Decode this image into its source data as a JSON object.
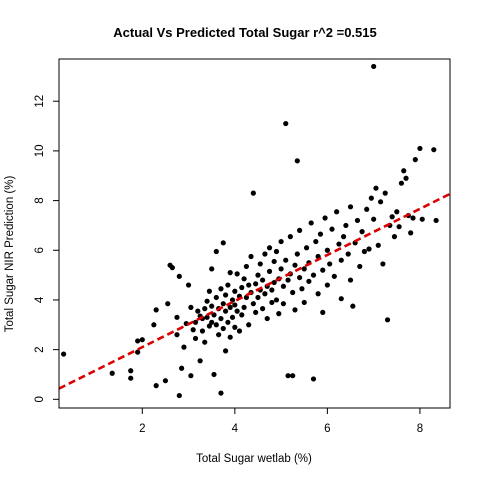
{
  "chart_data": {
    "type": "scatter",
    "title": "Actual Vs Predicted Total Sugar r^2 =0.515",
    "xlabel": "Total Sugar wetlab (%)",
    "ylabel": "Total Sugar NIR Prediction (%)",
    "xlim": [
      0.2,
      8.65
    ],
    "ylim": [
      -0.35,
      13.7
    ],
    "x_ticks": [
      2,
      4,
      6,
      8
    ],
    "y_ticks": [
      0,
      2,
      4,
      6,
      8,
      10,
      12
    ],
    "grid": false,
    "legend": "none",
    "colors": {
      "points": "#000000",
      "fit_line": "#dd0000"
    },
    "fit_line": {
      "style": "dashed",
      "x": [
        0.2,
        8.65
      ],
      "y": [
        0.43,
        8.27
      ]
    },
    "points": [
      [
        0.3,
        1.82
      ],
      [
        1.35,
        1.05
      ],
      [
        1.75,
        1.15
      ],
      [
        1.75,
        0.85
      ],
      [
        1.9,
        1.9
      ],
      [
        1.9,
        2.35
      ],
      [
        2.0,
        2.4
      ],
      [
        2.25,
        3.0
      ],
      [
        2.3,
        0.55
      ],
      [
        2.3,
        3.6
      ],
      [
        2.5,
        0.75
      ],
      [
        2.55,
        3.85
      ],
      [
        2.6,
        5.4
      ],
      [
        2.65,
        5.3
      ],
      [
        2.75,
        2.6
      ],
      [
        2.75,
        3.3
      ],
      [
        2.8,
        0.15
      ],
      [
        2.8,
        4.95
      ],
      [
        2.85,
        1.25
      ],
      [
        2.9,
        2.1
      ],
      [
        2.95,
        3.05
      ],
      [
        3.0,
        4.6
      ],
      [
        3.05,
        3.7
      ],
      [
        3.05,
        0.95
      ],
      [
        3.1,
        2.8
      ],
      [
        3.15,
        3.1
      ],
      [
        3.15,
        2.45
      ],
      [
        3.2,
        3.55
      ],
      [
        3.25,
        1.55
      ],
      [
        3.25,
        3.35
      ],
      [
        3.3,
        3.25
      ],
      [
        3.3,
        2.75
      ],
      [
        3.35,
        3.65
      ],
      [
        3.35,
        2.3
      ],
      [
        3.4,
        3.3
      ],
      [
        3.4,
        3.95
      ],
      [
        3.45,
        2.95
      ],
      [
        3.45,
        4.35
      ],
      [
        3.5,
        3.1
      ],
      [
        3.5,
        3.75
      ],
      [
        3.5,
        5.25
      ],
      [
        3.55,
        3.4
      ],
      [
        3.55,
        1.0
      ],
      [
        3.6,
        4.1
      ],
      [
        3.6,
        3.0
      ],
      [
        3.6,
        5.95
      ],
      [
        3.65,
        3.65
      ],
      [
        3.65,
        2.6
      ],
      [
        3.7,
        0.25
      ],
      [
        3.7,
        4.45
      ],
      [
        3.7,
        3.25
      ],
      [
        3.75,
        3.85
      ],
      [
        3.75,
        2.85
      ],
      [
        3.75,
        6.3
      ],
      [
        3.8,
        3.55
      ],
      [
        3.8,
        4.2
      ],
      [
        3.8,
        1.95
      ],
      [
        3.85,
        3.1
      ],
      [
        3.85,
        4.6
      ],
      [
        3.9,
        3.7
      ],
      [
        3.9,
        2.5
      ],
      [
        3.9,
        5.1
      ],
      [
        3.95,
        4.0
      ],
      [
        3.95,
        3.3
      ],
      [
        4.0,
        4.35
      ],
      [
        4.0,
        2.9
      ],
      [
        4.0,
        3.8
      ],
      [
        4.05,
        5.05
      ],
      [
        4.05,
        3.55
      ],
      [
        4.1,
        4.15
      ],
      [
        4.1,
        2.75
      ],
      [
        4.15,
        4.5
      ],
      [
        4.15,
        3.4
      ],
      [
        4.2,
        4.85
      ],
      [
        4.2,
        3.7
      ],
      [
        4.25,
        5.35
      ],
      [
        4.25,
        4.1
      ],
      [
        4.3,
        3.0
      ],
      [
        4.3,
        4.6
      ],
      [
        4.35,
        4.3
      ],
      [
        4.35,
        5.75
      ],
      [
        4.4,
        3.85
      ],
      [
        4.4,
        8.3
      ],
      [
        4.45,
        4.65
      ],
      [
        4.45,
        3.5
      ],
      [
        4.5,
        5.0
      ],
      [
        4.5,
        4.1
      ],
      [
        4.55,
        4.4
      ],
      [
        4.55,
        5.45
      ],
      [
        4.6,
        3.65
      ],
      [
        4.6,
        4.8
      ],
      [
        4.65,
        5.85
      ],
      [
        4.65,
        4.25
      ],
      [
        4.7,
        4.55
      ],
      [
        4.7,
        3.25
      ],
      [
        4.75,
        5.15
      ],
      [
        4.75,
        6.1
      ],
      [
        4.8,
        4.4
      ],
      [
        4.8,
        3.9
      ],
      [
        4.85,
        5.55
      ],
      [
        4.85,
        4.7
      ],
      [
        4.9,
        5.95
      ],
      [
        4.9,
        4.0
      ],
      [
        4.95,
        4.85
      ],
      [
        4.95,
        3.45
      ],
      [
        5.0,
        5.25
      ],
      [
        5.0,
        6.35
      ],
      [
        5.05,
        4.55
      ],
      [
        5.05,
        3.85
      ],
      [
        5.1,
        5.6
      ],
      [
        5.1,
        11.1
      ],
      [
        5.15,
        4.8
      ],
      [
        5.15,
        0.95
      ],
      [
        5.2,
        5.05
      ],
      [
        5.2,
        6.55
      ],
      [
        5.25,
        0.95
      ],
      [
        5.25,
        4.3
      ],
      [
        5.3,
        5.4
      ],
      [
        5.3,
        3.6
      ],
      [
        5.35,
        9.6
      ],
      [
        5.35,
        5.85
      ],
      [
        5.4,
        4.9
      ],
      [
        5.4,
        6.8
      ],
      [
        5.45,
        4.45
      ],
      [
        5.5,
        5.25
      ],
      [
        5.5,
        3.9
      ],
      [
        5.55,
        6.1
      ],
      [
        5.6,
        5.5
      ],
      [
        5.6,
        4.75
      ],
      [
        5.65,
        7.1
      ],
      [
        5.7,
        5.0
      ],
      [
        5.7,
        0.82
      ],
      [
        5.75,
        6.35
      ],
      [
        5.8,
        4.25
      ],
      [
        5.8,
        5.75
      ],
      [
        5.85,
        6.65
      ],
      [
        5.9,
        5.2
      ],
      [
        5.9,
        3.5
      ],
      [
        5.95,
        7.3
      ],
      [
        6.0,
        6.0
      ],
      [
        6.0,
        4.6
      ],
      [
        6.05,
        5.45
      ],
      [
        6.1,
        6.85
      ],
      [
        6.15,
        4.95
      ],
      [
        6.2,
        7.55
      ],
      [
        6.25,
        6.25
      ],
      [
        6.3,
        5.6
      ],
      [
        6.3,
        4.05
      ],
      [
        6.35,
        6.55
      ],
      [
        6.4,
        7.0
      ],
      [
        6.45,
        5.85
      ],
      [
        6.5,
        4.8
      ],
      [
        6.5,
        7.75
      ],
      [
        6.55,
        3.75
      ],
      [
        6.6,
        6.3
      ],
      [
        6.65,
        7.2
      ],
      [
        6.7,
        5.35
      ],
      [
        6.75,
        6.75
      ],
      [
        6.8,
        5.95
      ],
      [
        6.85,
        7.65
      ],
      [
        6.9,
        6.05
      ],
      [
        6.95,
        8.1
      ],
      [
        7.0,
        13.4
      ],
      [
        7.0,
        7.25
      ],
      [
        7.05,
        8.5
      ],
      [
        7.1,
        6.2
      ],
      [
        7.15,
        7.95
      ],
      [
        7.2,
        5.45
      ],
      [
        7.25,
        8.3
      ],
      [
        7.3,
        3.2
      ],
      [
        7.35,
        7.0
      ],
      [
        7.4,
        7.35
      ],
      [
        7.45,
        6.55
      ],
      [
        7.5,
        7.55
      ],
      [
        7.55,
        6.95
      ],
      [
        7.6,
        8.7
      ],
      [
        7.65,
        9.2
      ],
      [
        7.7,
        8.9
      ],
      [
        7.75,
        7.4
      ],
      [
        7.8,
        6.7
      ],
      [
        7.85,
        7.3
      ],
      [
        7.9,
        9.65
      ],
      [
        8.0,
        10.1
      ],
      [
        8.05,
        7.25
      ],
      [
        8.3,
        10.05
      ],
      [
        8.35,
        7.2
      ]
    ]
  }
}
